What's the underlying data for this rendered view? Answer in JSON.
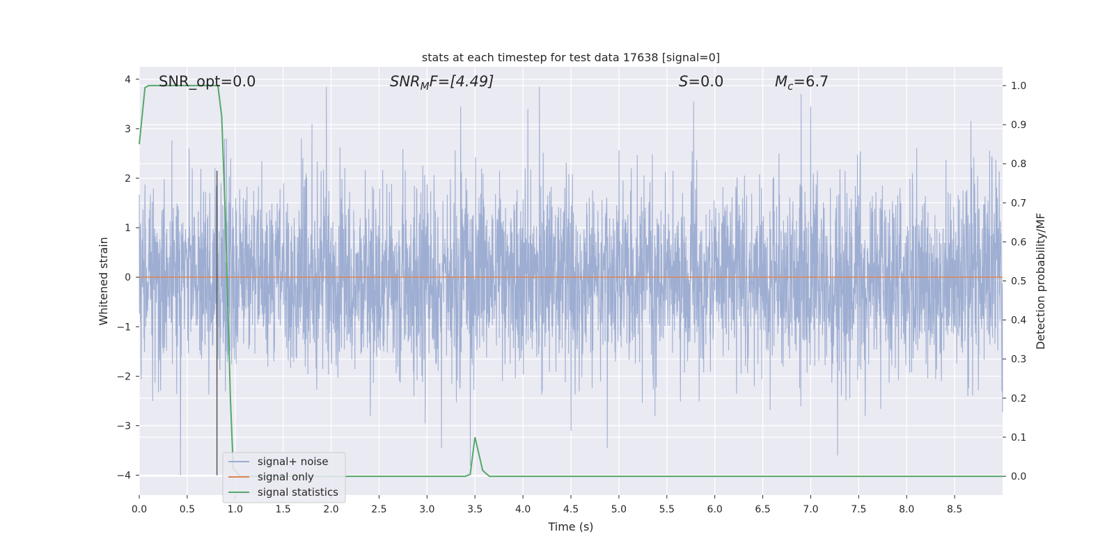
{
  "chart_data": {
    "type": "line",
    "title": "stats at each timestep for test data 17638 [signal=0]",
    "xlabel": "Time (s)",
    "ylabel": "Whitened strain",
    "ylabel_right": "Detection probability/MF",
    "xlim": [
      0.0,
      9.0
    ],
    "ylim": [
      -4.4,
      4.25
    ],
    "ylim_right": [
      -0.048,
      1.048
    ],
    "x_ticks": [
      0.0,
      0.5,
      1.0,
      1.5,
      2.0,
      2.5,
      3.0,
      3.5,
      4.0,
      4.5,
      5.0,
      5.5,
      6.0,
      6.5,
      7.0,
      7.5,
      8.0,
      8.5
    ],
    "x_tick_labels": [
      "0.0",
      "0.5",
      "1.0",
      "1.5",
      "2.0",
      "2.5",
      "3.0",
      "3.5",
      "4.0",
      "4.5",
      "5.0",
      "5.5",
      "6.0",
      "6.5",
      "7.0",
      "7.5",
      "8.0",
      "8.5"
    ],
    "y_ticks": [
      4,
      3,
      2,
      1,
      0,
      -1,
      -2,
      -3,
      -4
    ],
    "y_tick_labels": [
      "4",
      "3",
      "2",
      "1",
      "0",
      "−1",
      "−2",
      "−3",
      "−4"
    ],
    "y_right_ticks": [
      1.0,
      0.9,
      0.8,
      0.7,
      0.6,
      0.5,
      0.4,
      0.3,
      0.2,
      0.1,
      0.0
    ],
    "y_right_tick_labels": [
      "1.0",
      "0.9",
      "0.8",
      "0.7",
      "0.6",
      "0.5",
      "0.4",
      "0.3",
      "0.2",
      "0.1",
      "0.0"
    ],
    "grid": true,
    "legend_position": "lower-left",
    "annotations": [
      {
        "id": "snr-opt",
        "text": "SNR_opt=0.0"
      },
      {
        "id": "snr-mf",
        "text": "SNR",
        "sub": "M",
        "tail": "F=[4.49]"
      },
      {
        "id": "s-stat",
        "text": "S",
        "tail": "=0.0"
      },
      {
        "id": "mc",
        "text": "M",
        "sub": "c",
        "tail": "=6.7"
      }
    ],
    "marker_x": 0.81,
    "series": [
      {
        "name": "signal+ noise",
        "axis": "left",
        "color": "#9aabd0",
        "description_values": {
          "duration": 9.0,
          "noise_sigma": 0.95,
          "spikes": [
            [
              0.43,
              -4.0
            ],
            [
              0.52,
              2.6
            ],
            [
              0.79,
              2.2
            ],
            [
              1.95,
              3.85
            ],
            [
              1.8,
              3.1
            ],
            [
              2.98,
              -2.95
            ],
            [
              3.15,
              -3.45
            ],
            [
              3.35,
              3.45
            ],
            [
              3.45,
              -3.8
            ],
            [
              4.17,
              3.85
            ],
            [
              4.05,
              3.4
            ],
            [
              4.5,
              -3.1
            ],
            [
              4.88,
              -3.45
            ],
            [
              5.78,
              3.55
            ],
            [
              6.9,
              3.7
            ],
            [
              7.0,
              3.45
            ],
            [
              7.28,
              -3.6
            ],
            [
              8.67,
              3.15
            ]
          ]
        }
      },
      {
        "name": "signal only",
        "axis": "left",
        "color": "#dd8452",
        "values_constant": 0.0
      },
      {
        "name": "signal statistics",
        "axis": "right",
        "color": "#55a868",
        "x": [
          0.0,
          0.06,
          0.1,
          0.2,
          0.5,
          0.78,
          0.82,
          0.86,
          0.9,
          0.95,
          0.98,
          1.05,
          2.0,
          3.0,
          3.4,
          3.45,
          3.5,
          3.58,
          3.65,
          4.0,
          5.0,
          6.0,
          7.0,
          8.0,
          9.0
        ],
        "values": [
          0.85,
          0.995,
          1.0,
          1.0,
          1.0,
          1.0,
          1.0,
          0.92,
          0.65,
          0.2,
          0.02,
          0.0,
          0.0,
          0.0,
          0.0,
          0.005,
          0.1,
          0.015,
          0.0,
          0.0,
          0.0,
          0.0,
          0.0,
          0.0,
          0.0
        ]
      }
    ]
  }
}
